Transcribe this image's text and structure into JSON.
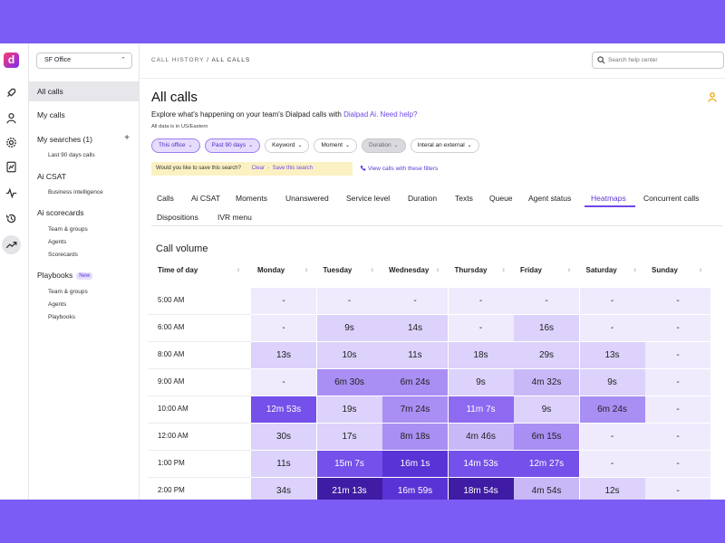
{
  "sidebar": {
    "office": "SF Office",
    "all_calls": "All calls",
    "my_calls": "My calls",
    "my_searches": "My searches (1)",
    "last_90": "Last 90 days calls",
    "ai_csat": "Ai CSAT",
    "business_intel": "Business intelligence",
    "ai_scorecards": "Ai scorecards",
    "team_groups": "Team & groups",
    "agents": "Agents",
    "scorecards": "Scorecards",
    "playbooks": "Playbooks",
    "new_badge": "New",
    "pb_team_groups": "Team & groups",
    "pb_agents": "Agents",
    "pb_playbooks": "Playbooks"
  },
  "header": {
    "crumb_root": "CALL HISTORY",
    "crumb_sep": "/",
    "crumb_current": "ALL CALLS",
    "help_placeholder": "Search help center",
    "title": "All calls",
    "subtitle_pre": "Explore what's happening on your team's Dialpad calls with ",
    "subtitle_link1": "Dialpad Ai.",
    "subtitle_link2": "Need help?",
    "timezone": "All data is in US/Eastern"
  },
  "filters": [
    "This office",
    "Past 90 days",
    "Keyword",
    "Moment",
    "Duration",
    "Interal an external"
  ],
  "save_bar": {
    "question": "Would you like to save this search?",
    "clear": "Clear",
    "dot": "·",
    "save": "Save this search"
  },
  "view_calls": "View calls with these filters",
  "tabs": [
    "Calls",
    "Ai CSAT",
    "Moments",
    "Unanswered",
    "Service level",
    "Duration",
    "Texts",
    "Queue",
    "Agent status",
    "Heatmaps",
    "Concurrent calls",
    "Dispositions",
    "IVR menu"
  ],
  "section_title": "Call volume",
  "heatmap": {
    "row_header": "Time of day",
    "days": [
      "Monday",
      "Tuesday",
      "Wednesday",
      "Thursday",
      "Friday",
      "Saturday",
      "Sunday"
    ],
    "rows": [
      {
        "time": "5:00 AM",
        "cells": [
          "-",
          "-",
          "-",
          "-",
          "-",
          "-",
          "-"
        ]
      },
      {
        "time": "6:00 AM",
        "cells": [
          "-",
          "9s",
          "14s",
          "-",
          "16s",
          "-",
          "-"
        ]
      },
      {
        "time": "8:00 AM",
        "cells": [
          "13s",
          "10s",
          "11s",
          "18s",
          "29s",
          "13s",
          "-"
        ]
      },
      {
        "time": "9:00 AM",
        "cells": [
          "-",
          "6m 30s",
          "6m 24s",
          "9s",
          "4m 32s",
          "9s",
          "-"
        ]
      },
      {
        "time": "10:00 AM",
        "cells": [
          "12m 53s",
          "19s",
          "7m 24s",
          "11m 7s",
          "9s",
          "6m 24s",
          "-"
        ]
      },
      {
        "time": "12:00 AM",
        "cells": [
          "30s",
          "17s",
          "8m 18s",
          "4m 46s",
          "6m 15s",
          "-",
          "-"
        ]
      },
      {
        "time": "1:00 PM",
        "cells": [
          "11s",
          "15m 7s",
          "16m 1s",
          "14m 53s",
          "12m 27s",
          "-",
          "-"
        ]
      },
      {
        "time": "2:00 PM",
        "cells": [
          "34s",
          "21m 13s",
          "16m 59s",
          "18m 54s",
          "4m 54s",
          "12s",
          "-"
        ]
      }
    ]
  },
  "colors": {
    "brand": "#7b5cf5",
    "accent": "#6f47e8"
  }
}
